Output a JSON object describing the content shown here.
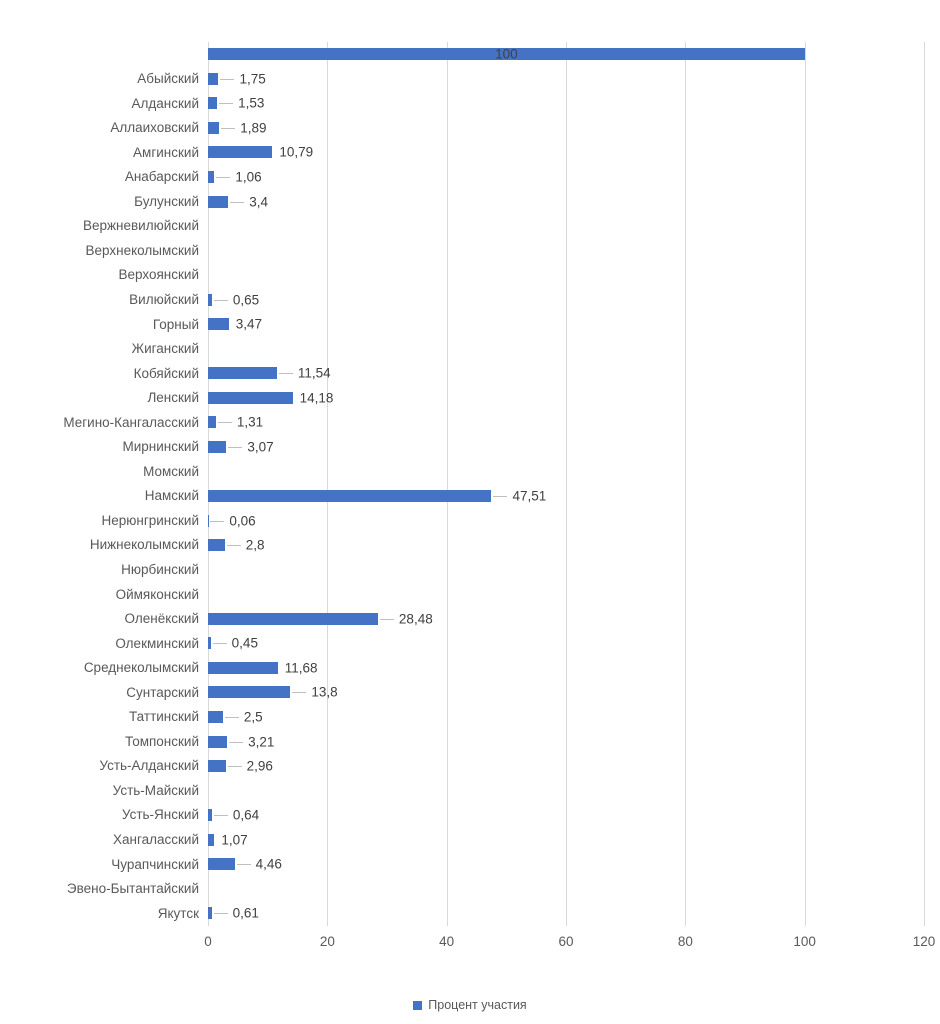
{
  "chart_data": {
    "type": "bar",
    "orientation": "horizontal",
    "title": "",
    "xlabel": "",
    "ylabel": "",
    "xlim": [
      0,
      120
    ],
    "xticks": [
      "0",
      "20",
      "40",
      "60",
      "80",
      "100",
      "120"
    ],
    "xtick_values": [
      0,
      20,
      40,
      60,
      80,
      100,
      120
    ],
    "grid": true,
    "legend": {
      "position": "bottom",
      "label": "Процент участия"
    },
    "series_name": "Процент участия",
    "categories": [
      "",
      "Абыйский",
      "Алданский",
      "Аллаиховский",
      "Амгинский",
      "Анабарский",
      "Булунский",
      "Вержневилюйский",
      "Верхнеколымский",
      "Верхоянский",
      "Вилюйский",
      "Горный",
      "Жиганский",
      "Кобяйский",
      "Ленский",
      "Мегино-Кангаласский",
      "Мирнинский",
      "Момский",
      "Намский",
      "Нерюнгринский",
      "Нижнеколымский",
      "Нюрбинский",
      "Оймяконский",
      "Оленёкский",
      "Олекминский",
      "Среднеколымский",
      "Сунтарский",
      "Таттинский",
      "Томпонский",
      "Усть-Алданский",
      "Усть-Майский",
      "Усть-Янский",
      "Хангаласский",
      "Чурапчинский",
      "Эвено-Бытантайский",
      "Якутск"
    ],
    "points": [
      {
        "category": "",
        "value": 100,
        "display": "100",
        "leader": false,
        "label_inside": true
      },
      {
        "category": "Абыйский",
        "value": 1.75,
        "display": "1,75",
        "leader": true,
        "label_inside": false
      },
      {
        "category": "Алданский",
        "value": 1.53,
        "display": "1,53",
        "leader": true,
        "label_inside": false
      },
      {
        "category": "Аллаиховский",
        "value": 1.89,
        "display": "1,89",
        "leader": true,
        "label_inside": false
      },
      {
        "category": "Амгинский",
        "value": 10.79,
        "display": "10,79",
        "leader": false,
        "label_inside": false
      },
      {
        "category": "Анабарский",
        "value": 1.06,
        "display": "1,06",
        "leader": true,
        "label_inside": false
      },
      {
        "category": "Булунский",
        "value": 3.4,
        "display": "3,4",
        "leader": true,
        "label_inside": false
      },
      {
        "category": "Вержневилюйский",
        "value": null,
        "display": "",
        "leader": false,
        "label_inside": false
      },
      {
        "category": "Верхнеколымский",
        "value": null,
        "display": "",
        "leader": false,
        "label_inside": false
      },
      {
        "category": "Верхоянский",
        "value": null,
        "display": "",
        "leader": false,
        "label_inside": false
      },
      {
        "category": "Вилюйский",
        "value": 0.65,
        "display": "0,65",
        "leader": true,
        "label_inside": false
      },
      {
        "category": "Горный",
        "value": 3.47,
        "display": "3,47",
        "leader": false,
        "label_inside": false
      },
      {
        "category": "Жиганский",
        "value": null,
        "display": "",
        "leader": false,
        "label_inside": false
      },
      {
        "category": "Кобяйский",
        "value": 11.54,
        "display": "11,54",
        "leader": true,
        "label_inside": false
      },
      {
        "category": "Ленский",
        "value": 14.18,
        "display": "14,18",
        "leader": false,
        "label_inside": false
      },
      {
        "category": "Мегино-Кангаласский",
        "value": 1.31,
        "display": "1,31",
        "leader": true,
        "label_inside": false
      },
      {
        "category": "Мирнинский",
        "value": 3.07,
        "display": "3,07",
        "leader": true,
        "label_inside": false
      },
      {
        "category": "Момский",
        "value": null,
        "display": "",
        "leader": false,
        "label_inside": false
      },
      {
        "category": "Намский",
        "value": 47.51,
        "display": "47,51",
        "leader": true,
        "label_inside": false
      },
      {
        "category": "Нерюнгринский",
        "value": 0.06,
        "display": "0,06",
        "leader": true,
        "label_inside": false
      },
      {
        "category": "Нижнеколымский",
        "value": 2.8,
        "display": "2,8",
        "leader": true,
        "label_inside": false
      },
      {
        "category": "Нюрбинский",
        "value": null,
        "display": "",
        "leader": false,
        "label_inside": false
      },
      {
        "category": "Оймяконский",
        "value": null,
        "display": "",
        "leader": false,
        "label_inside": false
      },
      {
        "category": "Оленёкский",
        "value": 28.48,
        "display": "28,48",
        "leader": true,
        "label_inside": false
      },
      {
        "category": "Олекминский",
        "value": 0.45,
        "display": "0,45",
        "leader": true,
        "label_inside": false
      },
      {
        "category": "Среднеколымский",
        "value": 11.68,
        "display": "11,68",
        "leader": false,
        "label_inside": false
      },
      {
        "category": "Сунтарский",
        "value": 13.8,
        "display": "13,8",
        "leader": true,
        "label_inside": false
      },
      {
        "category": "Таттинский",
        "value": 2.5,
        "display": "2,5",
        "leader": true,
        "label_inside": false
      },
      {
        "category": "Томпонский",
        "value": 3.21,
        "display": "3,21",
        "leader": true,
        "label_inside": false
      },
      {
        "category": "Усть-Алданский",
        "value": 2.96,
        "display": "2,96",
        "leader": true,
        "label_inside": false
      },
      {
        "category": "Усть-Майский",
        "value": null,
        "display": "",
        "leader": false,
        "label_inside": false
      },
      {
        "category": "Усть-Янский",
        "value": 0.64,
        "display": "0,64",
        "leader": true,
        "label_inside": false
      },
      {
        "category": "Хангаласский",
        "value": 1.07,
        "display": "1,07",
        "leader": false,
        "label_inside": false
      },
      {
        "category": "Чурапчинский",
        "value": 4.46,
        "display": "4,46",
        "leader": true,
        "label_inside": false
      },
      {
        "category": "Эвено-Бытантайский",
        "value": null,
        "display": "",
        "leader": false,
        "label_inside": false
      },
      {
        "category": "Якутск",
        "value": 0.61,
        "display": "0,61",
        "leader": true,
        "label_inside": false
      }
    ],
    "colors": {
      "bar": "#4472C4",
      "gridline": "#D9D9D9",
      "axis_text": "#595959",
      "value_text": "#404040",
      "leader_line": "#BFBFBF",
      "background": "#FFFFFF"
    }
  }
}
